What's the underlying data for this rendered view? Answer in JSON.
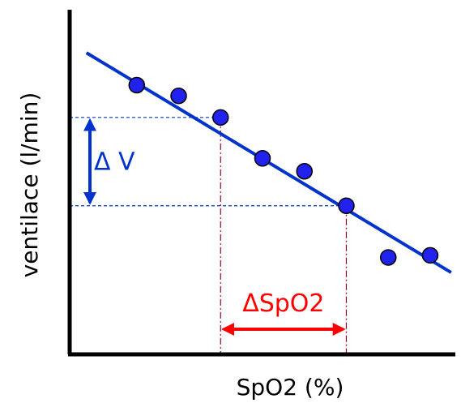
{
  "chart_data": {
    "type": "scatter",
    "xlabel": "SpO2 (%)",
    "ylabel": "ventilace (l/min)",
    "grid": false,
    "points": [
      {
        "x": 1.4,
        "y": 6.25
      },
      {
        "x": 2.4,
        "y": 6.0
      },
      {
        "x": 3.4,
        "y": 5.5
      },
      {
        "x": 4.4,
        "y": 4.55
      },
      {
        "x": 5.4,
        "y": 4.25
      },
      {
        "x": 6.4,
        "y": 3.45
      },
      {
        "x": 7.4,
        "y": 2.25
      },
      {
        "x": 8.4,
        "y": 2.3
      }
    ],
    "trendline": {
      "x": [
        0.2,
        8.9
      ],
      "y": [
        7.0,
        1.9
      ]
    },
    "xlim": [
      -0.2,
      9.0
    ],
    "ylim": [
      0,
      8.0
    ],
    "annotations": {
      "delta_v": {
        "label": "Δ V",
        "x": 3.4,
        "y_from": 5.5,
        "y_to": 3.45
      },
      "delta_spo2": {
        "label": "ΔSpO2",
        "x_from": 3.4,
        "x_to": 6.4,
        "y": 5.5,
        "y_end": 3.45
      }
    },
    "colors": {
      "line": "#0033CC",
      "point_fill": "#2222EE",
      "point_stroke": "#000000",
      "delta_v": "#0033CC",
      "delta_spo2": "#FF0000",
      "guide_blue": "#0033CC",
      "guide_red": "#990033"
    }
  }
}
